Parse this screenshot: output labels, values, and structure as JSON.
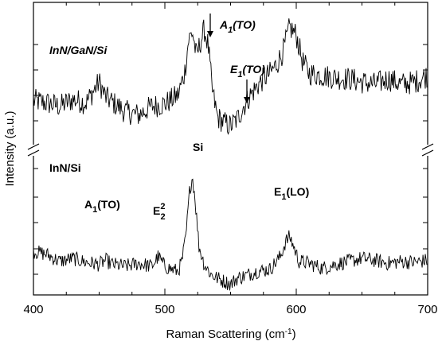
{
  "chart_data": {
    "type": "line",
    "xlabel": "Raman Scattering (cm",
    "xlabel_sup": "-1",
    "xlabel_close": ")",
    "ylabel": "Intensity (a.u.)",
    "xlim": [
      400,
      700
    ],
    "x_ticks": [
      400,
      500,
      600,
      700
    ],
    "x_tick_labels": [
      "400",
      "500",
      "600",
      "700"
    ],
    "y_axis": "relative intensity, broken axis between the two spectra, no numeric tick labels",
    "grid": false,
    "series": [
      {
        "name": "InN/GaN/Si",
        "name_parts": [
          "InN/GaN/Si"
        ],
        "style": "bold-italic",
        "points": [
          [
            400,
            0.35
          ],
          [
            410,
            0.33
          ],
          [
            420,
            0.3
          ],
          [
            430,
            0.36
          ],
          [
            440,
            0.33
          ],
          [
            450,
            0.52
          ],
          [
            455,
            0.38
          ],
          [
            470,
            0.25
          ],
          [
            480,
            0.22
          ],
          [
            490,
            0.3
          ],
          [
            500,
            0.32
          ],
          [
            510,
            0.4
          ],
          [
            515,
            0.6
          ],
          [
            518,
            0.9
          ],
          [
            521,
            0.98
          ],
          [
            524,
            0.75
          ],
          [
            527,
            0.88
          ],
          [
            530,
            1.0
          ],
          [
            533,
            0.85
          ],
          [
            536,
            0.45
          ],
          [
            540,
            0.2
          ],
          [
            545,
            0.15
          ],
          [
            550,
            0.12
          ],
          [
            555,
            0.18
          ],
          [
            560,
            0.3
          ],
          [
            565,
            0.4
          ],
          [
            570,
            0.48
          ],
          [
            575,
            0.55
          ],
          [
            580,
            0.6
          ],
          [
            585,
            0.68
          ],
          [
            590,
            0.8
          ],
          [
            595,
            1.02
          ],
          [
            600,
            0.95
          ],
          [
            605,
            0.7
          ],
          [
            610,
            0.6
          ],
          [
            620,
            0.58
          ],
          [
            630,
            0.56
          ],
          [
            640,
            0.55
          ],
          [
            650,
            0.52
          ],
          [
            660,
            0.5
          ],
          [
            670,
            0.55
          ],
          [
            680,
            0.5
          ],
          [
            690,
            0.52
          ],
          [
            700,
            0.58
          ]
        ]
      },
      {
        "name": "InN/Si",
        "name_parts": [
          "InN/Si"
        ],
        "style": "bold",
        "points": [
          [
            400,
            0.15
          ],
          [
            410,
            0.12
          ],
          [
            420,
            0.05
          ],
          [
            430,
            0.08
          ],
          [
            440,
            0.04
          ],
          [
            450,
            0.02
          ],
          [
            455,
            0.06
          ],
          [
            460,
            0.02
          ],
          [
            470,
            0.0
          ],
          [
            480,
            0.03
          ],
          [
            490,
            0.0
          ],
          [
            495,
            0.1
          ],
          [
            500,
            0.0
          ],
          [
            505,
            -0.03
          ],
          [
            510,
            -0.05
          ],
          [
            513,
            0.05
          ],
          [
            516,
            0.3
          ],
          [
            519,
            0.78
          ],
          [
            521,
            0.9
          ],
          [
            523,
            0.68
          ],
          [
            526,
            0.2
          ],
          [
            530,
            0.02
          ],
          [
            535,
            -0.08
          ],
          [
            540,
            -0.12
          ],
          [
            545,
            -0.15
          ],
          [
            550,
            -0.18
          ],
          [
            555,
            -0.12
          ],
          [
            560,
            -0.1
          ],
          [
            570,
            -0.05
          ],
          [
            580,
            -0.03
          ],
          [
            588,
            0.1
          ],
          [
            592,
            0.25
          ],
          [
            595,
            0.3
          ],
          [
            598,
            0.2
          ],
          [
            602,
            0.05
          ],
          [
            610,
            0.03
          ],
          [
            620,
            -0.02
          ],
          [
            630,
            0.02
          ],
          [
            640,
            0.05
          ],
          [
            650,
            0.08
          ],
          [
            660,
            0.06
          ],
          [
            670,
            0.03
          ],
          [
            680,
            0.05
          ],
          [
            690,
            0.04
          ],
          [
            700,
            0.06
          ]
        ]
      }
    ],
    "annotations": [
      {
        "parts": [
          "A",
          "1",
          "(TO)"
        ],
        "style": "bold-italic",
        "arrow": true,
        "x": 530
      },
      {
        "parts": [
          "E",
          "1",
          "(TO)"
        ],
        "style": "bold-italic",
        "arrow": true,
        "x": 560
      },
      {
        "parts": [
          "Si"
        ],
        "style": "bold",
        "arrow": false,
        "x": 521
      },
      {
        "parts": [
          "A",
          "1",
          "(TO)"
        ],
        "style": "bold",
        "arrow": false,
        "x": 450
      },
      {
        "parts": [
          "E",
          "2",
          "2"
        ],
        "style": "bold",
        "arrow": false,
        "x": 495
      },
      {
        "parts": [
          "E",
          "1",
          "(LO)"
        ],
        "style": "bold",
        "arrow": false,
        "x": 596
      }
    ]
  }
}
